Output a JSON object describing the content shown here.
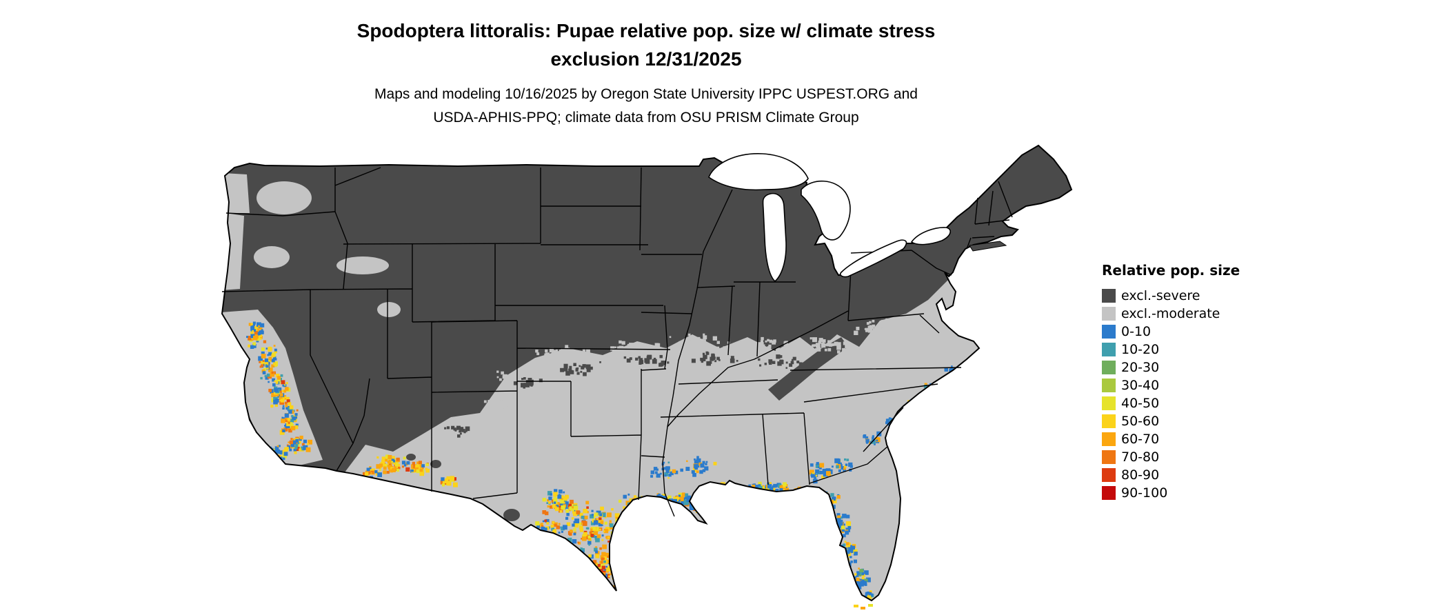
{
  "header": {
    "title_line1": "Spodoptera littoralis: Pupae relative pop. size w/ climate stress",
    "title_line2": "exclusion 12/31/2025",
    "subtitle_line1": "Maps and modeling 10/16/2025 by Oregon State University IPPC USPEST.ORG and",
    "subtitle_line2": "USDA-APHIS-PPQ; climate data from OSU PRISM Climate Group"
  },
  "legend": {
    "title": "Relative pop. size",
    "entries": [
      {
        "label": "excl.-severe",
        "color": "#4a4a4a"
      },
      {
        "label": "excl.-moderate",
        "color": "#c4c4c4"
      },
      {
        "label": "0-10",
        "color": "#2b7bcc"
      },
      {
        "label": "10-20",
        "color": "#3f9fae"
      },
      {
        "label": "20-30",
        "color": "#6fae5c"
      },
      {
        "label": "30-40",
        "color": "#aac93e"
      },
      {
        "label": "40-50",
        "color": "#e6e32b"
      },
      {
        "label": "50-60",
        "color": "#fbd31a"
      },
      {
        "label": "60-70",
        "color": "#fba60f"
      },
      {
        "label": "70-80",
        "color": "#ef7612"
      },
      {
        "label": "80-90",
        "color": "#dd3b10"
      },
      {
        "label": "90-100",
        "color": "#c40a0a"
      }
    ]
  },
  "map": {
    "region_name": "Continental United States"
  }
}
